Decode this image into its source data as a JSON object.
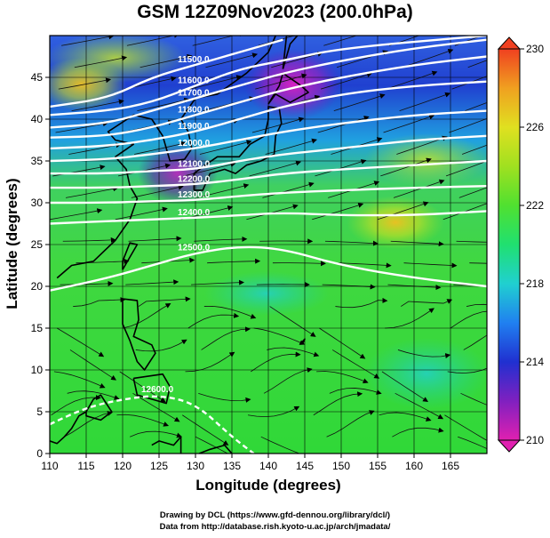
{
  "title": "GSM 12Z09Nov2023 (200.0hPa)",
  "axes": {
    "xlabel": "Longitude (degrees)",
    "ylabel": "Latitude  (degrees)",
    "xticks": [
      110,
      115,
      120,
      125,
      130,
      135,
      140,
      145,
      150,
      155,
      160,
      165
    ],
    "yticks": [
      0,
      5,
      10,
      15,
      20,
      25,
      30,
      35,
      40,
      45
    ],
    "xlim": [
      110,
      170
    ],
    "ylim": [
      0,
      50
    ]
  },
  "colorbar": {
    "ticks": [
      210,
      214,
      218,
      222,
      226,
      230
    ],
    "range": [
      210,
      230
    ],
    "colors": [
      "#e020b0",
      "#5020c0",
      "#2040e0",
      "#20b0f0",
      "#20e0a0",
      "#40e040",
      "#90e030",
      "#e0e020",
      "#f0a020",
      "#f05020"
    ]
  },
  "contours": [
    {
      "label": "11500.0",
      "points": [
        [
          110,
          41.5
        ],
        [
          118,
          42.5
        ],
        [
          124,
          45
        ],
        [
          130,
          46.5
        ],
        [
          136,
          48
        ],
        [
          142,
          49.5
        ]
      ]
    },
    {
      "label": "11600.0",
      "points": [
        [
          110,
          40.5
        ],
        [
          118,
          41
        ],
        [
          124,
          42
        ],
        [
          130,
          44
        ],
        [
          136,
          46
        ],
        [
          142,
          47
        ],
        [
          150,
          48.5
        ],
        [
          170,
          50
        ]
      ]
    },
    {
      "label": "11700.0",
      "points": [
        [
          110,
          39
        ],
        [
          118,
          39.5
        ],
        [
          124,
          41
        ],
        [
          130,
          42.5
        ],
        [
          136,
          44
        ],
        [
          142,
          45.5
        ],
        [
          150,
          47
        ],
        [
          160,
          48.5
        ],
        [
          170,
          49.5
        ]
      ]
    },
    {
      "label": "11800.0",
      "points": [
        [
          110,
          37.8
        ],
        [
          118,
          38
        ],
        [
          124,
          39
        ],
        [
          130,
          40.5
        ],
        [
          136,
          42
        ],
        [
          142,
          43.5
        ],
        [
          150,
          45
        ],
        [
          160,
          46.5
        ],
        [
          170,
          47.5
        ]
      ]
    },
    {
      "label": "11900.0",
      "points": [
        [
          110,
          36.5
        ],
        [
          118,
          36.8
        ],
        [
          124,
          37.5
        ],
        [
          130,
          38.5
        ],
        [
          136,
          40
        ],
        [
          142,
          41.5
        ],
        [
          150,
          43
        ],
        [
          160,
          44
        ],
        [
          170,
          44.5
        ]
      ]
    },
    {
      "label": "12000.0",
      "points": [
        [
          110,
          35
        ],
        [
          118,
          35.2
        ],
        [
          124,
          35.8
        ],
        [
          130,
          36.5
        ],
        [
          136,
          37.5
        ],
        [
          142,
          38.5
        ],
        [
          150,
          39.5
        ],
        [
          160,
          40.5
        ],
        [
          170,
          41
        ]
      ]
    },
    {
      "label": "12100.0",
      "points": [
        [
          110,
          33.5
        ],
        [
          118,
          33.5
        ],
        [
          124,
          33.8
        ],
        [
          130,
          34
        ],
        [
          136,
          35
        ],
        [
          142,
          35.8
        ],
        [
          150,
          36.5
        ],
        [
          160,
          37.5
        ],
        [
          170,
          38
        ]
      ]
    },
    {
      "label": "12200.0",
      "points": [
        [
          110,
          31.8
        ],
        [
          118,
          31.8
        ],
        [
          124,
          32
        ],
        [
          130,
          32.2
        ],
        [
          136,
          32.8
        ],
        [
          142,
          33.5
        ],
        [
          150,
          34
        ],
        [
          160,
          34.5
        ],
        [
          170,
          35
        ]
      ]
    },
    {
      "label": "12300.0",
      "points": [
        [
          110,
          30
        ],
        [
          118,
          30
        ],
        [
          124,
          30.2
        ],
        [
          130,
          30.3
        ],
        [
          136,
          30.8
        ],
        [
          142,
          31.2
        ],
        [
          150,
          31.5
        ],
        [
          160,
          31.8
        ],
        [
          170,
          32
        ]
      ]
    },
    {
      "label": "12400.0",
      "points": [
        [
          110,
          27.5
        ],
        [
          118,
          27.8
        ],
        [
          124,
          28
        ],
        [
          130,
          28.2
        ],
        [
          136,
          28.5
        ],
        [
          142,
          28.8
        ],
        [
          150,
          28.5
        ],
        [
          160,
          28.5
        ],
        [
          170,
          29
        ]
      ]
    },
    {
      "label": "12500.0",
      "points": [
        [
          110,
          19.5
        ],
        [
          118,
          21
        ],
        [
          124,
          22.5
        ],
        [
          130,
          24
        ],
        [
          136,
          24.8
        ],
        [
          142,
          24.5
        ],
        [
          150,
          22.5
        ],
        [
          160,
          21
        ],
        [
          170,
          20
        ]
      ]
    },
    {
      "label": "12600.0",
      "points": [
        [
          110,
          3.5
        ],
        [
          115,
          5.5
        ],
        [
          120,
          6.5
        ],
        [
          125,
          7
        ],
        [
          130,
          6
        ],
        [
          135,
          2
        ],
        [
          138,
          0
        ]
      ]
    }
  ],
  "coastlines": [
    [
      [
        111,
        21
      ],
      [
        113,
        22.5
      ],
      [
        116,
        23
      ],
      [
        119,
        25.5
      ],
      [
        121,
        28
      ],
      [
        122,
        30.5
      ],
      [
        121,
        32
      ],
      [
        120.5,
        34
      ],
      [
        119,
        35.5
      ],
      [
        121.5,
        37
      ],
      [
        119,
        37.5
      ],
      [
        118,
        38.5
      ],
      [
        121.5,
        40.5
      ],
      [
        124,
        40
      ],
      [
        125.5,
        38
      ],
      [
        126.5,
        35
      ],
      [
        128.5,
        35.2
      ],
      [
        129.5,
        36.5
      ],
      [
        129,
        38.5
      ],
      [
        128,
        40
      ],
      [
        130,
        42.5
      ],
      [
        133,
        43
      ],
      [
        137,
        45.5
      ],
      [
        140,
        48
      ],
      [
        141,
        50
      ]
    ],
    [
      [
        129.8,
        31.5
      ],
      [
        131,
        31.5
      ],
      [
        132,
        33.5
      ],
      [
        134,
        34
      ],
      [
        135.5,
        33.5
      ],
      [
        137,
        34.5
      ],
      [
        139,
        35
      ],
      [
        140.8,
        35.8
      ],
      [
        141,
        38
      ],
      [
        141.8,
        39.5
      ],
      [
        141.5,
        41.3
      ],
      [
        140,
        41.5
      ],
      [
        140,
        40
      ],
      [
        139.5,
        38
      ],
      [
        137.5,
        37
      ],
      [
        136,
        35.5
      ],
      [
        133,
        35.5
      ],
      [
        131,
        34.3
      ],
      [
        129.8,
        33.5
      ],
      [
        129.8,
        31.5
      ]
    ],
    [
      [
        140,
        41.8
      ],
      [
        141,
        43
      ],
      [
        143,
        42
      ],
      [
        145.5,
        43.2
      ],
      [
        144.5,
        44
      ],
      [
        142,
        45.5
      ],
      [
        141.5,
        44
      ],
      [
        140,
        41.8
      ]
    ],
    [
      [
        142,
        46
      ],
      [
        143,
        49
      ],
      [
        144,
        50
      ],
      [
        142.5,
        50
      ],
      [
        142,
        46
      ]
    ],
    [
      [
        120,
        22
      ],
      [
        121,
        23.5
      ],
      [
        122,
        25
      ],
      [
        121,
        25.2
      ],
      [
        120,
        23
      ],
      [
        120,
        22
      ]
    ],
    [
      [
        120,
        18.5
      ],
      [
        122,
        18.3
      ],
      [
        122.2,
        16
      ],
      [
        121.5,
        14
      ],
      [
        124,
        13
      ],
      [
        124.5,
        12
      ],
      [
        123,
        10
      ],
      [
        122,
        11
      ],
      [
        121,
        13.5
      ],
      [
        120,
        15.5
      ],
      [
        120,
        18.5
      ]
    ],
    [
      [
        121.5,
        9
      ],
      [
        125.5,
        9.5
      ],
      [
        126.5,
        8
      ],
      [
        126,
        6
      ],
      [
        124,
        6.5
      ],
      [
        122,
        7
      ],
      [
        121.5,
        9
      ]
    ],
    [
      [
        115,
        5
      ],
      [
        116,
        6.5
      ],
      [
        117,
        7
      ],
      [
        118.5,
        5
      ],
      [
        117,
        4
      ],
      [
        115,
        4.5
      ],
      [
        115,
        5
      ]
    ],
    [
      [
        110,
        1.5
      ],
      [
        111,
        1.2
      ],
      [
        112,
        2
      ],
      [
        113,
        3
      ],
      [
        114,
        4.5
      ],
      [
        115,
        5
      ]
    ],
    [
      [
        124,
        1
      ],
      [
        125,
        1.5
      ],
      [
        127,
        1
      ],
      [
        128,
        2
      ],
      [
        128,
        0
      ]
    ],
    [
      [
        130.5,
        0
      ],
      [
        132,
        0.5
      ],
      [
        134,
        1
      ],
      [
        135,
        0
      ]
    ],
    [
      [
        144.5,
        13.2
      ],
      [
        145,
        13.7
      ],
      [
        144.8,
        13.3
      ],
      [
        144.5,
        13.2
      ]
    ]
  ]
}
